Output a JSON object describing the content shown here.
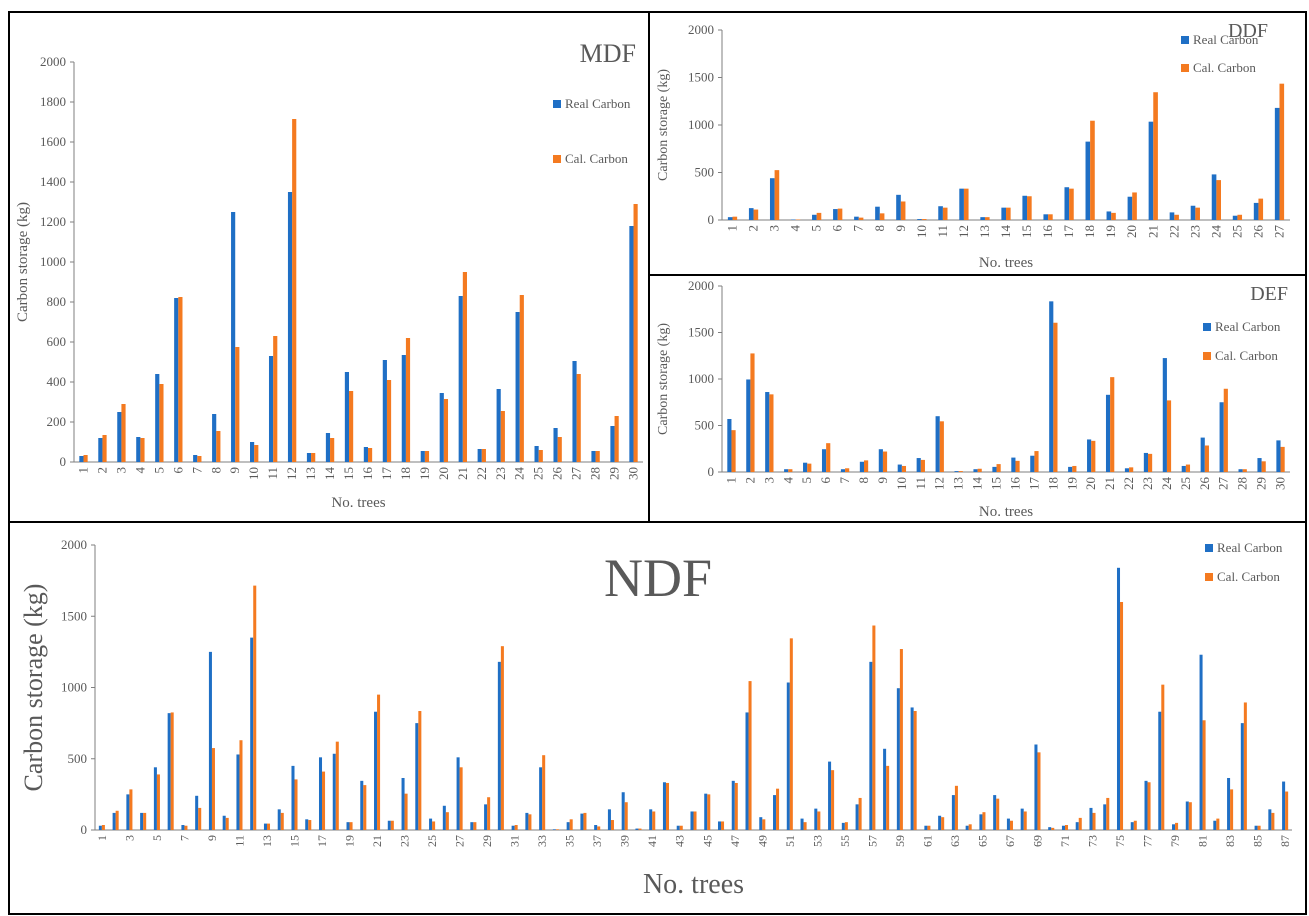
{
  "colors": {
    "real": "#1f6fc5",
    "cal": "#f47a20",
    "axis": "#7f7f7f",
    "text": "#595959",
    "border": "#000000"
  },
  "chart_data": [
    {
      "id": "mdf",
      "type": "bar",
      "title": "MDF",
      "xlabel": "No. trees",
      "ylabel": "Carbon storage (kg)",
      "ylim": [
        0,
        2000
      ],
      "yticks": [
        "0",
        "200",
        "400",
        "600",
        "800",
        "1000",
        "1200",
        "1400",
        "1600",
        "1800",
        "2000"
      ],
      "categories": [
        "1",
        "2",
        "3",
        "4",
        "5",
        "6",
        "7",
        "8",
        "9",
        "10",
        "11",
        "12",
        "13",
        "14",
        "15",
        "16",
        "17",
        "18",
        "19",
        "20",
        "21",
        "22",
        "23",
        "24",
        "25",
        "26",
        "27",
        "28",
        "29",
        "30"
      ],
      "tick_labels": [
        "1",
        "2",
        "3",
        "4",
        "5",
        "6",
        "7",
        "8",
        "9",
        "10",
        "11",
        "12",
        "13",
        "14",
        "15",
        "16",
        "17",
        "18",
        "19",
        "20",
        "21",
        "22",
        "23",
        "24",
        "25",
        "26",
        "27",
        "28",
        "29",
        "30"
      ],
      "legend_position": "right",
      "series": [
        {
          "name": "Real Carbon",
          "values": [
            30,
            120,
            250,
            125,
            440,
            820,
            35,
            240,
            1250,
            100,
            530,
            1350,
            45,
            145,
            450,
            75,
            510,
            535,
            55,
            345,
            830,
            65,
            365,
            750,
            80,
            170,
            505,
            55,
            180,
            1180
          ]
        },
        {
          "name": "Cal. Carbon",
          "values": [
            35,
            135,
            290,
            120,
            390,
            825,
            30,
            155,
            575,
            85,
            630,
            1715,
            45,
            120,
            355,
            70,
            410,
            620,
            55,
            315,
            950,
            65,
            255,
            835,
            60,
            125,
            440,
            55,
            230,
            1290
          ]
        }
      ]
    },
    {
      "id": "ddf",
      "type": "bar",
      "title": "DDF",
      "xlabel": "No. trees",
      "ylabel": "Carbon storage (kg)",
      "ylim": [
        0,
        2000
      ],
      "yticks": [
        "0",
        "500",
        "1000",
        "1500",
        "2000"
      ],
      "categories": [
        "1",
        "2",
        "3",
        "4",
        "5",
        "6",
        "7",
        "8",
        "9",
        "10",
        "11",
        "12",
        "13",
        "14",
        "15",
        "16",
        "17",
        "18",
        "19",
        "20",
        "21",
        "22",
        "23",
        "24",
        "25",
        "26",
        "27"
      ],
      "tick_labels": [
        "1",
        "2",
        "3",
        "4",
        "5",
        "6",
        "7",
        "8",
        "9",
        "10",
        "11",
        "12",
        "13",
        "14",
        "15",
        "16",
        "17",
        "18",
        "19",
        "20",
        "21",
        "22",
        "23",
        "24",
        "25",
        "26",
        "27"
      ],
      "legend_position": "top-right",
      "series": [
        {
          "name": "Real Carbon",
          "values": [
            30,
            125,
            440,
            5,
            55,
            115,
            35,
            140,
            265,
            10,
            145,
            330,
            30,
            130,
            255,
            60,
            345,
            825,
            90,
            245,
            1035,
            80,
            150,
            480,
            45,
            180,
            1180
          ]
        },
        {
          "name": "Cal. Carbon",
          "values": [
            35,
            110,
            525,
            5,
            75,
            120,
            25,
            70,
            195,
            10,
            130,
            330,
            30,
            130,
            250,
            60,
            330,
            1045,
            75,
            290,
            1345,
            55,
            130,
            420,
            55,
            225,
            1435
          ]
        }
      ]
    },
    {
      "id": "def",
      "type": "bar",
      "title": "DEF",
      "xlabel": "No. trees",
      "ylabel": "Carbon storage (kg)",
      "ylim": [
        0,
        2000
      ],
      "yticks": [
        "0",
        "500",
        "1000",
        "1500",
        "2000"
      ],
      "categories": [
        "1",
        "2",
        "3",
        "4",
        "5",
        "6",
        "7",
        "8",
        "9",
        "10",
        "11",
        "12",
        "13",
        "14",
        "15",
        "16",
        "17",
        "18",
        "19",
        "20",
        "21",
        "22",
        "23",
        "24",
        "25",
        "26",
        "27",
        "28",
        "29",
        "30"
      ],
      "tick_labels": [
        "1",
        "2",
        "3",
        "4",
        "5",
        "6",
        "7",
        "8",
        "9",
        "10",
        "11",
        "12",
        "13",
        "14",
        "15",
        "16",
        "17",
        "18",
        "19",
        "20",
        "21",
        "22",
        "23",
        "24",
        "25",
        "26",
        "27",
        "28",
        "29",
        "30"
      ],
      "legend_position": "right",
      "series": [
        {
          "name": "Real Carbon",
          "values": [
            570,
            995,
            860,
            30,
            100,
            245,
            30,
            110,
            245,
            80,
            150,
            600,
            10,
            30,
            55,
            155,
            175,
            1835,
            55,
            350,
            830,
            40,
            205,
            1225,
            65,
            370,
            750,
            30,
            150,
            340
          ]
        },
        {
          "name": "Cal. Carbon",
          "values": [
            450,
            1275,
            835,
            30,
            90,
            310,
            40,
            125,
            220,
            65,
            130,
            545,
            10,
            35,
            85,
            120,
            225,
            1605,
            65,
            335,
            1020,
            50,
            195,
            770,
            80,
            285,
            895,
            30,
            115,
            270
          ]
        }
      ]
    },
    {
      "id": "ndf",
      "type": "bar",
      "title": "NDF",
      "xlabel": "No. trees",
      "ylabel": "Carbon storage (kg)",
      "ylim": [
        0,
        2000
      ],
      "yticks": [
        "0",
        "500",
        "1000",
        "1500",
        "2000"
      ],
      "categories": [
        "1",
        "2",
        "3",
        "4",
        "5",
        "6",
        "7",
        "8",
        "9",
        "10",
        "11",
        "12",
        "13",
        "14",
        "15",
        "16",
        "17",
        "18",
        "19",
        "20",
        "21",
        "22",
        "23",
        "24",
        "25",
        "26",
        "27",
        "28",
        "29",
        "30",
        "31",
        "32",
        "33",
        "34",
        "35",
        "36",
        "37",
        "38",
        "39",
        "40",
        "41",
        "42",
        "43",
        "44",
        "45",
        "46",
        "47",
        "48",
        "49",
        "50",
        "51",
        "52",
        "53",
        "54",
        "55",
        "56",
        "57",
        "58",
        "59",
        "60",
        "61",
        "62",
        "63",
        "64",
        "65",
        "66",
        "67",
        "68",
        "69",
        "70",
        "71",
        "72",
        "73",
        "74",
        "75",
        "76",
        "77",
        "78",
        "79",
        "80",
        "81",
        "82",
        "83",
        "84",
        "85",
        "86",
        "87"
      ],
      "tick_labels": [
        "1",
        "3",
        "5",
        "7",
        "9",
        "11",
        "13",
        "15",
        "17",
        "19",
        "21",
        "23",
        "25",
        "27",
        "29",
        "31",
        "33",
        "35",
        "37",
        "39",
        "41",
        "43",
        "45",
        "47",
        "49",
        "51",
        "53",
        "55",
        "57",
        "59",
        "61",
        "63",
        "65",
        "67",
        "69",
        "71",
        "73",
        "75",
        "77",
        "79",
        "81",
        "83",
        "85",
        "87"
      ],
      "legend_position": "top-right",
      "series": [
        {
          "name": "Real Carbon",
          "values": [
            30,
            120,
            250,
            120,
            440,
            820,
            35,
            240,
            1250,
            100,
            530,
            1350,
            45,
            145,
            450,
            75,
            510,
            535,
            55,
            345,
            830,
            65,
            365,
            750,
            80,
            170,
            510,
            55,
            180,
            1180,
            30,
            120,
            440,
            5,
            55,
            115,
            35,
            145,
            265,
            10,
            145,
            335,
            30,
            130,
            255,
            60,
            345,
            825,
            90,
            245,
            1035,
            80,
            150,
            480,
            50,
            180,
            1180,
            570,
            995,
            860,
            30,
            100,
            245,
            30,
            110,
            245,
            80,
            150,
            600,
            20,
            30,
            55,
            155,
            180,
            1840,
            55,
            345,
            830,
            40,
            200,
            1230,
            65,
            365,
            750,
            30,
            145,
            340
          ]
        },
        {
          "name": "Cal. Carbon",
          "values": [
            35,
            135,
            285,
            120,
            390,
            825,
            30,
            155,
            575,
            85,
            630,
            1715,
            45,
            120,
            355,
            70,
            410,
            620,
            55,
            315,
            950,
            65,
            255,
            835,
            60,
            125,
            440,
            55,
            230,
            1290,
            35,
            110,
            525,
            5,
            75,
            120,
            25,
            70,
            195,
            10,
            130,
            330,
            30,
            130,
            250,
            60,
            330,
            1045,
            75,
            290,
            1345,
            55,
            130,
            420,
            55,
            225,
            1435,
            450,
            1270,
            835,
            30,
            90,
            310,
            40,
            125,
            220,
            65,
            130,
            545,
            15,
            35,
            85,
            120,
            225,
            1600,
            65,
            335,
            1020,
            50,
            195,
            770,
            80,
            285,
            895,
            30,
            120,
            270
          ]
        }
      ]
    }
  ]
}
